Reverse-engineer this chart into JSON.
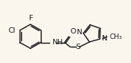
{
  "background_color": "#faf6ee",
  "line_color": "#1a1a1a",
  "line_width": 1.0,
  "font_size": 6.8,
  "fig_width": 1.67,
  "fig_height": 0.81,
  "dpi": 100,
  "xlim": [
    0,
    167
  ],
  "ylim": [
    0,
    81
  ]
}
